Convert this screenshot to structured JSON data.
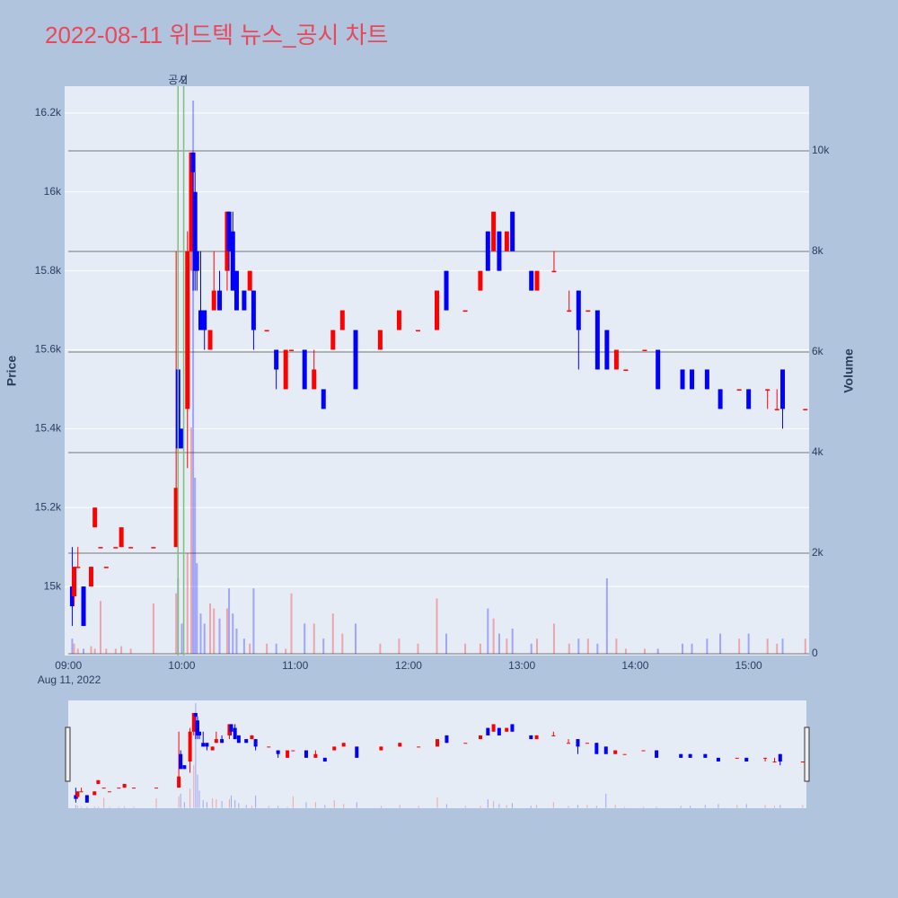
{
  "chart_data": {
    "type": "candlestick",
    "title": "2022-08-11 위드텍 뉴스_공시 차트",
    "y_title": "Price",
    "y2_title": "Volume",
    "x_date_label": "Aug 11, 2022",
    "increasing_color": "#ff0000",
    "decreasing_color": "#0000ff",
    "x": [
      "09:02",
      "09:03",
      "09:05",
      "09:08",
      "09:12",
      "09:14",
      "09:17",
      "09:20",
      "09:25",
      "09:28",
      "09:33",
      "09:45",
      "09:57",
      "09:58",
      "10:00",
      "10:03",
      "10:05",
      "10:06",
      "10:07",
      "10:08",
      "10:10",
      "10:12",
      "10:15",
      "10:17",
      "10:20",
      "10:24",
      "10:25",
      "10:27",
      "10:29",
      "10:33",
      "10:36",
      "10:38",
      "10:45",
      "10:50",
      "10:55",
      "10:58",
      "11:05",
      "11:10",
      "11:15",
      "11:20",
      "11:25",
      "11:32",
      "11:45",
      "11:55",
      "12:05",
      "12:15",
      "12:20",
      "12:30",
      "12:38",
      "12:42",
      "12:45",
      "12:48",
      "12:52",
      "12:55",
      "13:05",
      "13:08",
      "13:17",
      "13:25",
      "13:30",
      "13:35",
      "13:40",
      "13:45",
      "13:50",
      "13:55",
      "14:05",
      "14:12",
      "14:25",
      "14:30",
      "14:38",
      "14:45",
      "14:55",
      "15:00",
      "15:10",
      "15:15",
      "15:18",
      "15:30"
    ],
    "open": [
      15000,
      14975,
      15050,
      15000,
      15000,
      15150,
      15100,
      15050,
      15100,
      15100,
      15100,
      15100,
      15100,
      15550,
      15400,
      15450,
      15850,
      16100,
      16000,
      15850,
      15700,
      15700,
      15600,
      15700,
      15750,
      15800,
      15950,
      15900,
      15800,
      15750,
      15750,
      15750,
      15650,
      15600,
      15500,
      15600,
      15600,
      15500,
      15500,
      15600,
      15650,
      15650,
      15600,
      15650,
      15650,
      15650,
      15800,
      15700,
      15750,
      15900,
      15850,
      15900,
      15850,
      15950,
      15800,
      15750,
      15800,
      15700,
      15750,
      15700,
      15700,
      15650,
      15550,
      15550,
      15600,
      15600,
      15550,
      15550,
      15550,
      15500,
      15500,
      15500,
      15500,
      15450,
      15550,
      15450
    ],
    "high": [
      15100,
      15050,
      15100,
      15000,
      15050,
      15200,
      15100,
      15050,
      15100,
      15150,
      15100,
      15100,
      15850,
      15600,
      15400,
      15900,
      16100,
      16100,
      16050,
      15850,
      15850,
      15700,
      15650,
      15850,
      15800,
      15950,
      15950,
      15950,
      15800,
      15750,
      15800,
      15750,
      15650,
      15600,
      15600,
      15600,
      15600,
      15600,
      15500,
      15650,
      15700,
      15650,
      15650,
      15700,
      15650,
      15750,
      15800,
      15700,
      15800,
      15900,
      15950,
      15900,
      15900,
      15950,
      15800,
      15800,
      15850,
      15750,
      15750,
      15700,
      15700,
      15650,
      15600,
      15550,
      15600,
      15600,
      15550,
      15550,
      15550,
      15500,
      15500,
      15500,
      15500,
      15500,
      15550,
      15450
    ],
    "low": [
      14900,
      14950,
      15050,
      14900,
      15000,
      15150,
      15100,
      15050,
      15100,
      15100,
      15100,
      15100,
      15100,
      15350,
      15350,
      15300,
      15800,
      15750,
      15750,
      15750,
      15650,
      15600,
      15600,
      15700,
      15700,
      15750,
      15800,
      15750,
      15700,
      15700,
      15750,
      15600,
      15650,
      15500,
      15500,
      15600,
      15500,
      15500,
      15450,
      15600,
      15650,
      15500,
      15600,
      15650,
      15650,
      15650,
      15700,
      15700,
      15750,
      15800,
      15850,
      15800,
      15850,
      15850,
      15750,
      15750,
      15800,
      15700,
      15550,
      15700,
      15550,
      15550,
      15550,
      15550,
      15600,
      15500,
      15500,
      15500,
      15500,
      15450,
      15500,
      15450,
      15450,
      15450,
      15400,
      15450
    ],
    "close": [
      14950,
      15050,
      15050,
      14900,
      15050,
      15200,
      15100,
      15050,
      15100,
      15150,
      15100,
      15100,
      15250,
      15350,
      15350,
      15850,
      16100,
      16050,
      15800,
      15800,
      15650,
      15650,
      15650,
      15750,
      15700,
      15950,
      15850,
      15750,
      15700,
      15700,
      15800,
      15650,
      15650,
      15550,
      15600,
      15600,
      15500,
      15550,
      15450,
      15650,
      15700,
      15500,
      15650,
      15700,
      15650,
      15750,
      15700,
      15700,
      15800,
      15800,
      15950,
      15800,
      15900,
      15850,
      15750,
      15800,
      15800,
      15700,
      15650,
      15700,
      15550,
      15550,
      15600,
      15550,
      15600,
      15500,
      15500,
      15500,
      15500,
      15450,
      15500,
      15450,
      15500,
      15450,
      15450,
      15450
    ],
    "volume": [
      300,
      200,
      100,
      100,
      150,
      100,
      1050,
      100,
      100,
      150,
      100,
      1000,
      1200,
      1500,
      600,
      2000,
      4500,
      11000,
      3500,
      1800,
      800,
      600,
      1000,
      900,
      700,
      900,
      1300,
      800,
      500,
      300,
      200,
      1300,
      200,
      200,
      100,
      1200,
      600,
      600,
      300,
      800,
      400,
      600,
      200,
      300,
      200,
      1100,
      400,
      200,
      200,
      900,
      700,
      400,
      300,
      500,
      200,
      300,
      600,
      200,
      300,
      300,
      200,
      1500,
      300,
      100,
      100,
      100,
      200,
      200,
      300,
      400,
      300,
      400,
      300,
      200,
      300,
      300
    ],
    "xlim": [
      "08:58",
      "15:32"
    ],
    "xticks": [
      "09:00",
      "10:00",
      "11:00",
      "12:00",
      "13:00",
      "14:00",
      "15:00"
    ],
    "ylim": [
      14825,
      16268
    ],
    "yticks": [
      {
        "value": 15000,
        "label": "15k"
      },
      {
        "value": 15200,
        "label": "15.2k"
      },
      {
        "value": 15400,
        "label": "15.4k"
      },
      {
        "value": 15600,
        "label": "15.6k"
      },
      {
        "value": 15800,
        "label": "15.8k"
      },
      {
        "value": 16000,
        "label": "16k"
      },
      {
        "value": 16200,
        "label": "16.2k"
      }
    ],
    "y2lim": [
      -36,
      11286
    ],
    "y2ticks": [
      0,
      {
        "value": 2000,
        "label": "2k"
      },
      {
        "value": 4000,
        "label": "4k"
      },
      {
        "value": 6000,
        "label": "6k"
      },
      {
        "value": 8000,
        "label": "8k"
      },
      {
        "value": 10000,
        "label": "10k"
      }
    ],
    "annotations": [
      {
        "x": "09:58",
        "text": "공시",
        "color": "#7fbf7f"
      },
      {
        "x": "10:01",
        "text": "2",
        "color": "#7fbf7f"
      }
    ],
    "grid": true
  }
}
